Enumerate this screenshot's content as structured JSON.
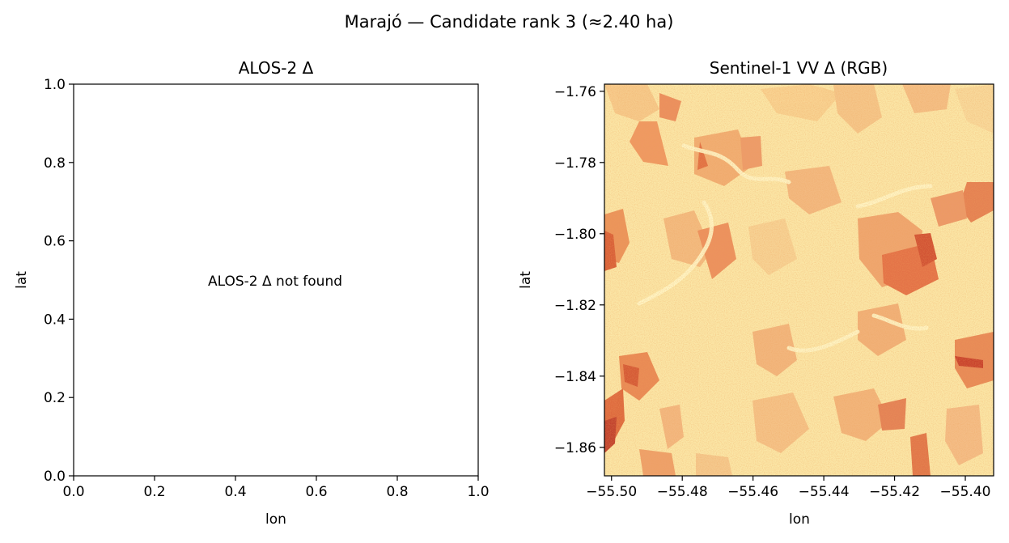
{
  "figure": {
    "suptitle": "Marajó — Candidate rank 3 (≈2.40 ha)"
  },
  "chart_data": [
    {
      "type": "scatter",
      "title": "ALOS-2 Δ",
      "xlabel": "lon",
      "ylabel": "lat",
      "xlim": [
        0.0,
        1.0
      ],
      "ylim": [
        0.0,
        1.0
      ],
      "xticks": [
        0.0,
        0.2,
        0.4,
        0.6,
        0.8,
        1.0
      ],
      "yticks": [
        0.0,
        0.2,
        0.4,
        0.6,
        0.8,
        1.0
      ],
      "xtick_labels": [
        "0.0",
        "0.2",
        "0.4",
        "0.6",
        "0.8",
        "1.0"
      ],
      "ytick_labels": [
        "0.0",
        "0.2",
        "0.4",
        "0.6",
        "0.8",
        "1.0"
      ],
      "annotation": "ALOS-2 Δ not found",
      "grid": false,
      "series": []
    },
    {
      "type": "heatmap",
      "title": "Sentinel-1 VV Δ (RGB)",
      "xlabel": "lon",
      "ylabel": "lat",
      "xlim": [
        -55.502,
        -55.392
      ],
      "ylim": [
        -1.868,
        -1.758
      ],
      "xticks": [
        -55.5,
        -55.48,
        -55.46,
        -55.44,
        -55.42,
        -55.4
      ],
      "yticks": [
        -1.76,
        -1.78,
        -1.8,
        -1.82,
        -1.84,
        -1.86
      ],
      "xtick_labels": [
        "−55.50",
        "−55.48",
        "−55.46",
        "−55.44",
        "−55.42",
        "−55.40"
      ],
      "ytick_labels": [
        "−1.76",
        "−1.78",
        "−1.80",
        "−1.82",
        "−1.84",
        "−1.86"
      ],
      "colormap": [
        "#fff3b8",
        "#fde69c",
        "#f7c27a",
        "#ee8a4e",
        "#d84a2a",
        "#b30d14"
      ],
      "grid": false
    }
  ]
}
